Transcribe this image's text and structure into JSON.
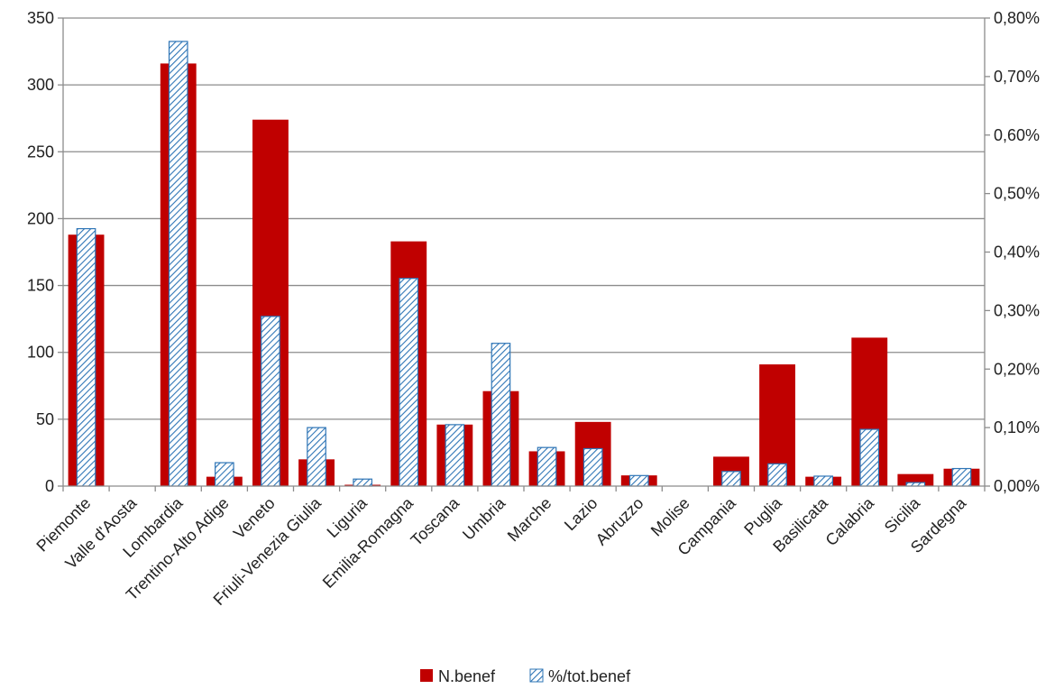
{
  "chart_data": {
    "type": "bar",
    "categories": [
      "Piemonte",
      "Valle d'Aosta",
      "Lombardia",
      "Trentino-Alto Adige",
      "Veneto",
      "Friuli-Venezia Giulia",
      "Liguria",
      "Emilia-Romagna",
      "Toscana",
      "Umbria",
      "Marche",
      "Lazio",
      "Abruzzo",
      "Molise",
      "Campania",
      "Puglia",
      "Basilicata",
      "Calabria",
      "Sicilia",
      "Sardegna"
    ],
    "series": [
      {
        "name": "N.benef",
        "axis": "left",
        "color": "#c00000",
        "values": [
          188,
          0,
          316,
          7,
          274,
          20,
          1,
          183,
          46,
          71,
          26,
          48,
          8,
          0,
          22,
          91,
          7,
          111,
          9,
          13
        ]
      },
      {
        "name": "%/tot.benef",
        "axis": "right",
        "color": "#2e75b6",
        "pattern": "diagonal-hatch",
        "values": [
          0.0044,
          0,
          0.0076,
          0.0004,
          0.0029,
          0.001,
          0.00012,
          0.00355,
          0.00105,
          0.00244,
          0.00066,
          0.00064,
          0.00018,
          0,
          0.00025,
          0.00038,
          0.00017,
          0.00097,
          6e-05,
          0.0003
        ]
      }
    ],
    "y_left": {
      "min": 0,
      "max": 350,
      "step": 50,
      "ticks": [
        "0",
        "50",
        "100",
        "150",
        "200",
        "250",
        "300",
        "350"
      ]
    },
    "y_right": {
      "min": 0,
      "max": 0.008,
      "step": 0.001,
      "ticks": [
        "0,00%",
        "0,10%",
        "0,20%",
        "0,30%",
        "0,40%",
        "0,50%",
        "0,60%",
        "0,70%",
        "0,80%"
      ]
    },
    "title": "",
    "xlabel": "",
    "ylabel": "",
    "grid": true,
    "legend": {
      "position": "bottom",
      "labels": [
        "N.benef",
        "%/tot.benef"
      ]
    }
  }
}
